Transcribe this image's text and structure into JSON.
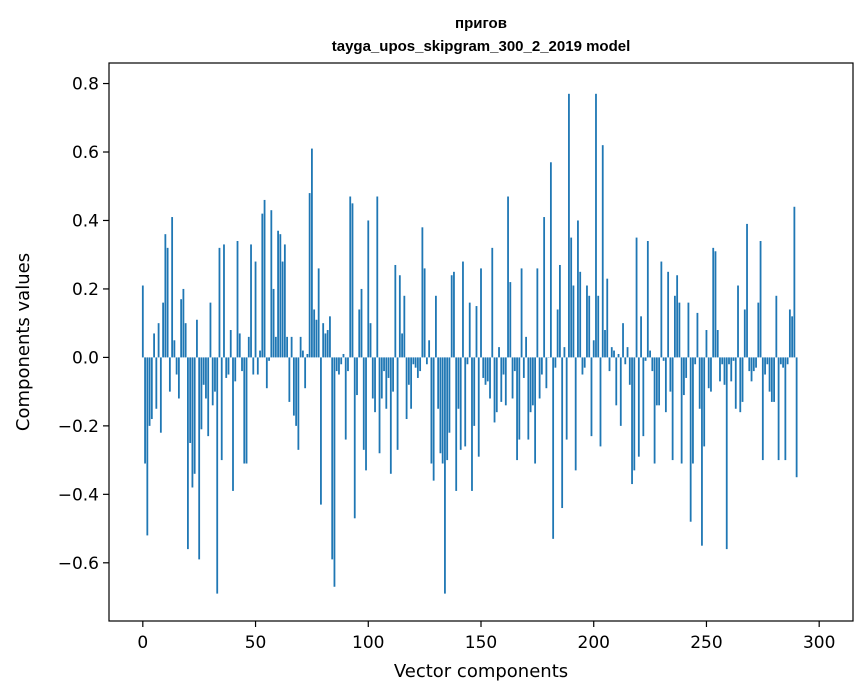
{
  "chart_data": {
    "type": "bar",
    "title_line1": "пригов",
    "title_line2": "tayga_upos_skipgram_300_2_2019 model",
    "xlabel": "Vector components",
    "ylabel": "Components values",
    "xlim": [
      -15,
      315
    ],
    "ylim": [
      -0.77,
      0.86
    ],
    "xticks": [
      0,
      50,
      100,
      150,
      200,
      250,
      300
    ],
    "xtick_labels": [
      "0",
      "50",
      "100",
      "150",
      "200",
      "250",
      "300"
    ],
    "yticks": [
      -0.6,
      -0.4,
      -0.2,
      0.0,
      0.2,
      0.4,
      0.6,
      0.8
    ],
    "ytick_labels": [
      "−0.6",
      "−0.4",
      "−0.2",
      "0.0",
      "0.2",
      "0.4",
      "0.6",
      "0.8"
    ],
    "bar_color": "#1f77b4",
    "grid": false,
    "values": [
      0.21,
      -0.31,
      -0.52,
      -0.2,
      -0.18,
      0.07,
      -0.15,
      0.1,
      -0.22,
      0.16,
      0.36,
      0.32,
      -0.1,
      0.41,
      0.05,
      -0.05,
      -0.12,
      0.17,
      0.2,
      0.1,
      -0.56,
      -0.25,
      -0.38,
      -0.34,
      0.11,
      -0.59,
      -0.21,
      -0.08,
      -0.12,
      -0.23,
      0.16,
      -0.14,
      -0.1,
      -0.69,
      0.32,
      -0.3,
      0.33,
      -0.06,
      -0.05,
      0.08,
      -0.39,
      -0.07,
      0.34,
      0.07,
      -0.04,
      -0.31,
      -0.31,
      0.06,
      0.33,
      -0.05,
      0.28,
      -0.05,
      0.02,
      0.42,
      0.46,
      -0.09,
      -0.01,
      0.43,
      0.2,
      0.06,
      0.37,
      0.36,
      0.28,
      0.33,
      0.06,
      -0.13,
      0.06,
      -0.17,
      -0.2,
      -0.27,
      0.06,
      0.02,
      -0.09,
      0.01,
      0.48,
      0.61,
      0.14,
      0.11,
      0.26,
      -0.43,
      0.1,
      0.07,
      0.08,
      0.12,
      -0.59,
      -0.67,
      -0.04,
      -0.05,
      -0.02,
      0.01,
      -0.24,
      -0.04,
      0.47,
      0.45,
      -0.47,
      -0.11,
      0.14,
      0.2,
      -0.27,
      -0.33,
      0.4,
      0.1,
      -0.12,
      -0.16,
      0.47,
      -0.28,
      -0.12,
      -0.04,
      -0.15,
      -0.06,
      -0.34,
      -0.1,
      0.27,
      -0.27,
      0.24,
      0.07,
      0.18,
      -0.18,
      -0.08,
      -0.15,
      -0.02,
      -0.03,
      -0.06,
      -0.04,
      0.38,
      0.26,
      -0.02,
      0.05,
      -0.31,
      -0.36,
      0.18,
      -0.15,
      -0.28,
      -0.31,
      -0.69,
      -0.3,
      -0.22,
      0.24,
      0.25,
      -0.39,
      -0.15,
      -0.27,
      0.28,
      -0.26,
      -0.02,
      0.16,
      -0.39,
      -0.2,
      0.15,
      -0.29,
      0.26,
      -0.06,
      -0.08,
      -0.07,
      -0.12,
      0.32,
      -0.19,
      -0.16,
      0.03,
      -0.13,
      -0.05,
      -0.14,
      0.47,
      0.22,
      -0.12,
      -0.04,
      -0.3,
      -0.24,
      0.26,
      -0.06,
      0.06,
      -0.24,
      -0.16,
      -0.14,
      -0.31,
      0.26,
      -0.12,
      -0.05,
      0.41,
      -0.09,
      0.0,
      0.57,
      -0.53,
      -0.03,
      0.14,
      0.27,
      -0.44,
      0.03,
      -0.24,
      0.77,
      0.35,
      0.21,
      -0.33,
      0.4,
      0.25,
      -0.05,
      -0.03,
      0.21,
      0.18,
      -0.23,
      0.05,
      0.77,
      0.18,
      -0.26,
      0.62,
      0.08,
      0.23,
      -0.04,
      0.03,
      0.02,
      -0.14,
      0.01,
      -0.2,
      0.1,
      -0.02,
      0.03,
      -0.08,
      -0.37,
      -0.33,
      0.35,
      -0.29,
      0.12,
      -0.23,
      -0.01,
      0.34,
      0.02,
      -0.04,
      -0.31,
      -0.14,
      -0.14,
      0.28,
      -0.01,
      -0.16,
      0.25,
      -0.1,
      -0.3,
      0.18,
      0.24,
      0.16,
      -0.31,
      -0.11,
      -0.06,
      0.16,
      -0.48,
      -0.31,
      -0.02,
      0.13,
      -0.15,
      -0.55,
      -0.26,
      0.08,
      -0.09,
      -0.1,
      0.32,
      0.31,
      0.08,
      -0.07,
      -0.02,
      -0.08,
      -0.56,
      -0.02,
      -0.07,
      -0.01,
      -0.15,
      0.21,
      -0.16,
      -0.13,
      0.14,
      0.39,
      -0.04,
      -0.07,
      -0.04,
      -0.03,
      0.16,
      0.34,
      -0.3,
      -0.05,
      -0.02,
      -0.1,
      -0.13,
      -0.13,
      0.18,
      -0.3,
      -0.02,
      -0.03,
      -0.3,
      -0.02,
      0.14,
      0.12,
      0.44,
      -0.35
    ]
  }
}
